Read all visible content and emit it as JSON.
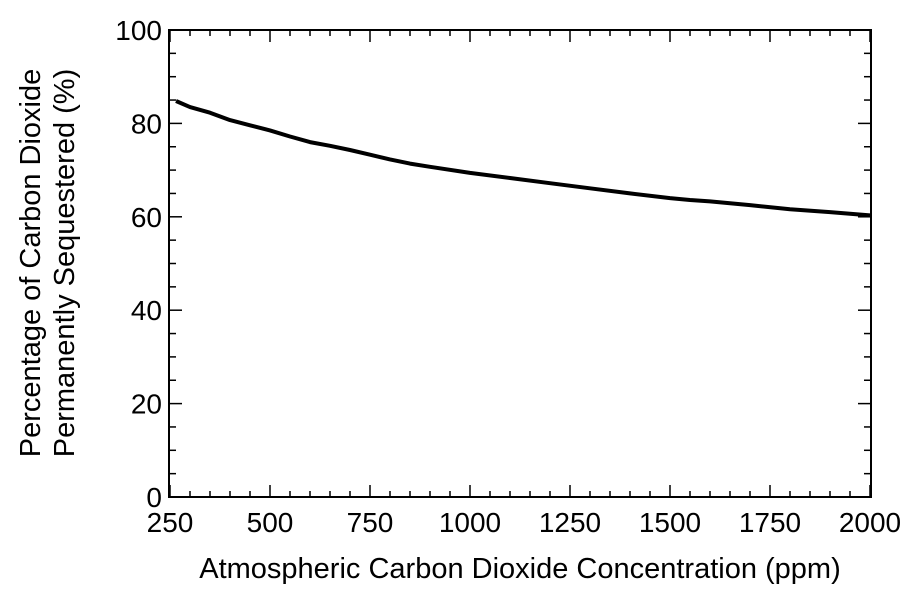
{
  "chart_data": {
    "type": "line",
    "title": "",
    "xlabel": "Atmospheric Carbon Dioxide Concentration (ppm)",
    "ylabel_lines": [
      "Percentage of Carbon Dioxide",
      "Permanently Sequestered (%)"
    ],
    "xlim": [
      250,
      2000
    ],
    "ylim": [
      0,
      100
    ],
    "xticks": [
      250,
      500,
      750,
      1000,
      1250,
      1500,
      1750,
      2000
    ],
    "yticks": [
      0,
      20,
      40,
      60,
      80,
      100
    ],
    "grid": false,
    "legend": "none",
    "line_color": "#000000",
    "series": [
      {
        "x": [
          265,
          300,
          350,
          400,
          450,
          500,
          550,
          600,
          650,
          700,
          750,
          800,
          850,
          900,
          1000,
          1100,
          1200,
          1300,
          1400,
          1500,
          1550,
          1600,
          1700,
          1800,
          1900,
          2000
        ],
        "y": [
          84.8,
          83.5,
          82.3,
          80.7,
          79.6,
          78.5,
          77.2,
          76.0,
          75.2,
          74.3,
          73.3,
          72.3,
          71.4,
          70.7,
          69.4,
          68.3,
          67.2,
          66.1,
          65.0,
          64.0,
          63.6,
          63.3,
          62.5,
          61.6,
          61.0,
          60.3
        ]
      }
    ]
  }
}
